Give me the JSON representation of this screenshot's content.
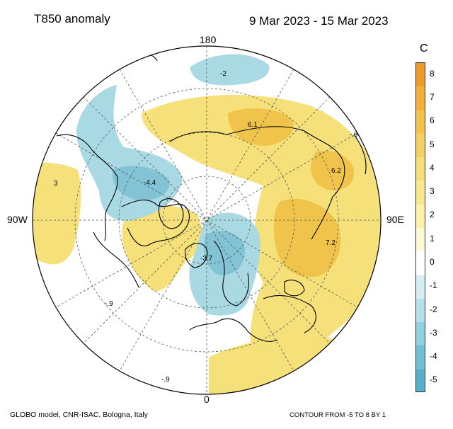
{
  "header": {
    "title": "T850 anomaly",
    "dates": "9 Mar 2023 - 15 Mar 2023"
  },
  "map": {
    "longitude_labels": {
      "top": "180",
      "bottom": "0",
      "left": "90W",
      "right": "90E"
    },
    "value_labels": [
      "-2",
      "6.1",
      "-.9",
      "6.2",
      "3",
      "-4.4",
      "7.2",
      "-3.7",
      "-.9",
      "-.9"
    ],
    "warm_color": "#f5e07a",
    "warm_core_color": "#f0c44a",
    "cold_color": "#a9dae4",
    "cold_core_color": "#82c4d6"
  },
  "colorbar": {
    "unit": "C",
    "labels": [
      "8",
      "7",
      "6",
      "5",
      "4",
      "3",
      "2",
      "1",
      "0",
      "-1",
      "-2",
      "-3",
      "-4",
      "-5"
    ],
    "colors": [
      "#ef9b2a",
      "#f2b03a",
      "#f3c24d",
      "#f5d161",
      "#f6de76",
      "#f8e88d",
      "#fbf1ad",
      "#fdf8d6",
      "#ffffff",
      "#d5eef3",
      "#b4e0ea",
      "#92d0e0",
      "#72bfd4",
      "#58afca"
    ]
  },
  "footer": {
    "credit": "GLOBO model, CNR-ISAC, Bologna, Italy",
    "contour": "CONTOUR FROM -5 TO 8 BY 1"
  }
}
